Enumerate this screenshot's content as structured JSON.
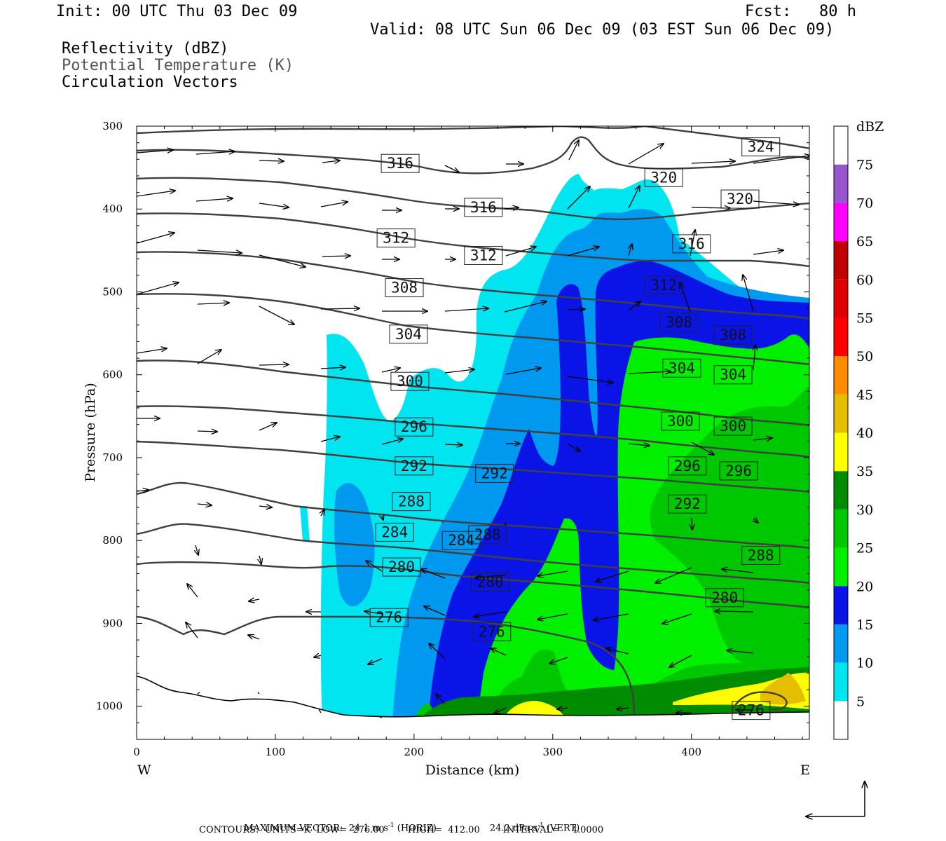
{
  "header": {
    "init": "Init: 00 UTC Thu 03 Dec 09",
    "fcst": "Fcst:   80 h",
    "valid": "Valid: 08 UTC Sun 06 Dec 09 (03 EST Sun 06 Dec 09)"
  },
  "fields": {
    "reflectivity": "Reflectivity (dBZ)",
    "theta": "Potential Temperature (K)",
    "vectors": "Circulation Vectors"
  },
  "footer": {
    "max_vector_prefix": "MAXIMUM VECTOR:  24.1 m s",
    "max_vector_horiz": " (HORIZ)",
    "max_vector_vert_val": "24.2 dPa s",
    "max_vector_vert": " (VERT)",
    "sup": "-1",
    "contours": "CONTOURS:  UNITS=K  LOW=  276.00        HIGH=  412.00        INTERVAL=    4.0000"
  },
  "colors": {
    "c5": "#00e5f0",
    "c10": "#0099f0",
    "c15": "#0a14e6",
    "c20": "#00f000",
    "c25": "#00c800",
    "c30": "#008c00",
    "c35": "#ffff00",
    "c40": "#e6be00",
    "c45": "#ff8c00",
    "c50": "#ff0000",
    "c55": "#dc0000",
    "c60": "#be0000",
    "c65": "#ff00ff",
    "c70": "#9955cc",
    "c75": "#ffffff",
    "contour": "#404040"
  },
  "chart_data": {
    "type": "cross-section contour",
    "xlabel": "Distance (km)",
    "ylabel": "Pressure (hPa)",
    "xlim": [
      0,
      485
    ],
    "ylim": [
      300,
      1040
    ],
    "xticks": [
      0,
      100,
      200,
      300,
      400
    ],
    "yticks": [
      300,
      400,
      500,
      600,
      700,
      800,
      900,
      1000
    ],
    "x_endpoints": {
      "left": "W",
      "right": "E"
    },
    "colorbar": {
      "unit": "dBZ",
      "levels": [
        5,
        10,
        15,
        20,
        25,
        30,
        35,
        40,
        45,
        50,
        55,
        60,
        65,
        70,
        75
      ]
    },
    "contour_labels": [
      {
        "value": "324",
        "x": 450,
        "p": 325
      },
      {
        "value": "320",
        "x": 380,
        "p": 362
      },
      {
        "value": "320",
        "x": 435,
        "p": 388
      },
      {
        "value": "316",
        "x": 190,
        "p": 345
      },
      {
        "value": "316",
        "x": 250,
        "p": 398
      },
      {
        "value": "316",
        "x": 400,
        "p": 442
      },
      {
        "value": "312",
        "x": 187,
        "p": 435
      },
      {
        "value": "312",
        "x": 250,
        "p": 456
      },
      {
        "value": "312",
        "x": 380,
        "p": 492
      },
      {
        "value": "308",
        "x": 193,
        "p": 495
      },
      {
        "value": "308",
        "x": 391,
        "p": 537
      },
      {
        "value": "308",
        "x": 430,
        "p": 552
      },
      {
        "value": "304",
        "x": 196,
        "p": 551
      },
      {
        "value": "304",
        "x": 393,
        "p": 592
      },
      {
        "value": "304",
        "x": 430,
        "p": 600
      },
      {
        "value": "300",
        "x": 197,
        "p": 608
      },
      {
        "value": "300",
        "x": 392,
        "p": 656
      },
      {
        "value": "300",
        "x": 430,
        "p": 662
      },
      {
        "value": "296",
        "x": 200,
        "p": 663
      },
      {
        "value": "296",
        "x": 397,
        "p": 710
      },
      {
        "value": "296",
        "x": 434,
        "p": 716
      },
      {
        "value": "292",
        "x": 200,
        "p": 710
      },
      {
        "value": "292",
        "x": 258,
        "p": 719
      },
      {
        "value": "292",
        "x": 397,
        "p": 756
      },
      {
        "value": "288",
        "x": 198,
        "p": 753
      },
      {
        "value": "288",
        "x": 253,
        "p": 793
      },
      {
        "value": "288",
        "x": 450,
        "p": 818
      },
      {
        "value": "284",
        "x": 186,
        "p": 790
      },
      {
        "value": "284",
        "x": 234,
        "p": 800
      },
      {
        "value": "280",
        "x": 191,
        "p": 832
      },
      {
        "value": "280",
        "x": 255,
        "p": 850
      },
      {
        "value": "280",
        "x": 424,
        "p": 869
      },
      {
        "value": "276",
        "x": 182,
        "p": 893
      },
      {
        "value": "276",
        "x": 256,
        "p": 910
      },
      {
        "value": "276",
        "x": 443,
        "p": 1005
      }
    ]
  }
}
